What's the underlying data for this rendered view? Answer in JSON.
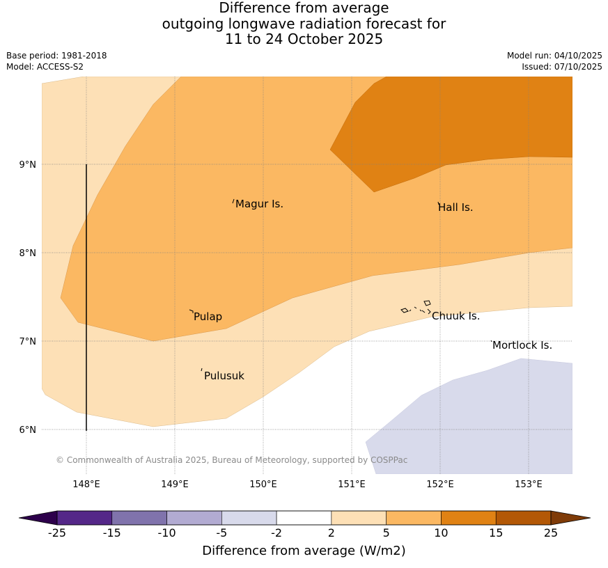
{
  "title": {
    "line1": "Difference from average",
    "line2": "outgoing longwave radiation forecast for",
    "line3": "11 to 24 October 2025"
  },
  "meta": {
    "base_period": "Base period: 1981-2018",
    "model": "Model: ACCESS-S2",
    "model_run": "Model run: 04/10/2025",
    "issued": "Issued: 07/10/2025"
  },
  "map": {
    "copyright": "© Commonwealth of Australia 2025, Bureau of Meteorology, supported by COSPPac",
    "lon_ticks": [
      "148°E",
      "149°E",
      "150°E",
      "151°E",
      "152°E",
      "153°E"
    ],
    "lat_ticks": [
      "9°N",
      "8°N",
      "7°N",
      "6°N"
    ],
    "places": [
      "Magur Is.",
      "Hall Is.",
      "Pulap",
      "Chuuk Is.",
      "Mortlock Is.",
      "Pulusuk"
    ]
  },
  "colorbar": {
    "label": "Difference from average (W/m2)",
    "ticks": [
      "-25",
      "-15",
      "-10",
      "-5",
      "-2",
      "2",
      "5",
      "10",
      "15",
      "25"
    ],
    "colors": [
      "#2d004b",
      "#542788",
      "#8073ac",
      "#b2abd2",
      "#d8daeb",
      "#ffffff",
      "#fde0b6",
      "#fbb862",
      "#e08214",
      "#b35806",
      "#7f3b08"
    ]
  },
  "colors": {
    "light_orange": "#fde0b6",
    "mid_orange": "#fbb862",
    "dark_orange": "#e08214",
    "light_purple": "#d8daeb"
  }
}
